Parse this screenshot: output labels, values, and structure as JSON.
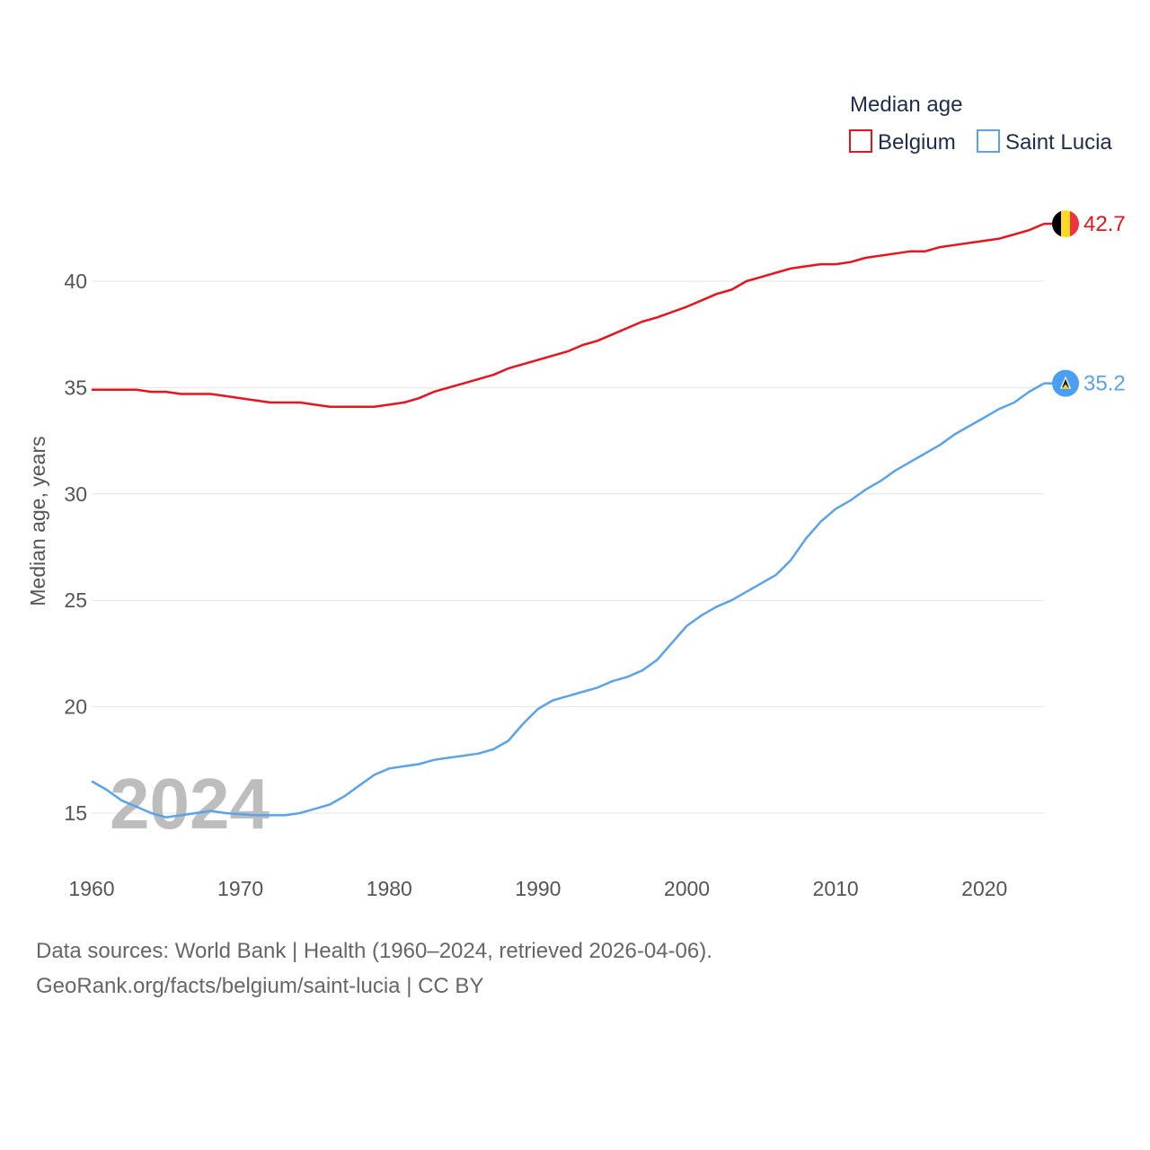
{
  "chart_data": {
    "type": "line",
    "legend_title": "Median age",
    "ylabel": "Median age, years",
    "xlabel": "",
    "xlim": [
      1960,
      2024
    ],
    "ylim": [
      12.5,
      44.5
    ],
    "x_ticks": [
      1960,
      1970,
      1980,
      1990,
      2000,
      2010,
      2020
    ],
    "y_ticks": [
      15,
      20,
      25,
      30,
      35,
      40
    ],
    "year_watermark": "2024",
    "grid": true,
    "legend_position": "top-right",
    "series": [
      {
        "name": "Belgium",
        "color": "#e8131c",
        "end_label": "42.7",
        "flag_icon": "belgium-flag-icon",
        "points": [
          [
            1960,
            34.9
          ],
          [
            1963,
            34.9
          ],
          [
            1964,
            34.8
          ],
          [
            1965,
            34.8
          ],
          [
            1966,
            34.7
          ],
          [
            1968,
            34.7
          ],
          [
            1970,
            34.5
          ],
          [
            1972,
            34.3
          ],
          [
            1974,
            34.3
          ],
          [
            1976,
            34.1
          ],
          [
            1979,
            34.1
          ],
          [
            1981,
            34.3
          ],
          [
            1982,
            34.5
          ],
          [
            1983,
            34.8
          ],
          [
            1985,
            35.2
          ],
          [
            1987,
            35.6
          ],
          [
            1988,
            35.9
          ],
          [
            1990,
            36.3
          ],
          [
            1992,
            36.7
          ],
          [
            1993,
            37.0
          ],
          [
            1994,
            37.2
          ],
          [
            1995,
            37.5
          ],
          [
            1997,
            38.1
          ],
          [
            1998,
            38.3
          ],
          [
            2000,
            38.8
          ],
          [
            2001,
            39.1
          ],
          [
            2002,
            39.4
          ],
          [
            2003,
            39.6
          ],
          [
            2004,
            40.0
          ],
          [
            2005,
            40.2
          ],
          [
            2006,
            40.4
          ],
          [
            2007,
            40.6
          ],
          [
            2008,
            40.7
          ],
          [
            2009,
            40.8
          ],
          [
            2010,
            40.8
          ],
          [
            2011,
            40.9
          ],
          [
            2012,
            41.1
          ],
          [
            2014,
            41.3
          ],
          [
            2015,
            41.4
          ],
          [
            2016,
            41.4
          ],
          [
            2017,
            41.6
          ],
          [
            2018,
            41.7
          ],
          [
            2020,
            41.9
          ],
          [
            2021,
            42.0
          ],
          [
            2022,
            42.2
          ],
          [
            2023,
            42.4
          ],
          [
            2024,
            42.7
          ]
        ]
      },
      {
        "name": "Saint Lucia",
        "color": "#5aa3e8",
        "end_label": "35.2",
        "flag_icon": "saint-lucia-flag-icon",
        "points": [
          [
            1960,
            16.5
          ],
          [
            1961,
            16.1
          ],
          [
            1962,
            15.6
          ],
          [
            1963,
            15.3
          ],
          [
            1964,
            15.0
          ],
          [
            1965,
            14.8
          ],
          [
            1966,
            14.9
          ],
          [
            1967,
            15.0
          ],
          [
            1968,
            15.1
          ],
          [
            1969,
            15.0
          ],
          [
            1970,
            14.95
          ],
          [
            1971,
            14.9
          ],
          [
            1972,
            14.9
          ],
          [
            1973,
            14.9
          ],
          [
            1974,
            15.0
          ],
          [
            1975,
            15.2
          ],
          [
            1976,
            15.4
          ],
          [
            1977,
            15.8
          ],
          [
            1978,
            16.3
          ],
          [
            1979,
            16.8
          ],
          [
            1980,
            17.1
          ],
          [
            1981,
            17.2
          ],
          [
            1982,
            17.3
          ],
          [
            1983,
            17.5
          ],
          [
            1984,
            17.6
          ],
          [
            1985,
            17.7
          ],
          [
            1986,
            17.8
          ],
          [
            1987,
            18.0
          ],
          [
            1988,
            18.4
          ],
          [
            1989,
            19.2
          ],
          [
            1990,
            19.9
          ],
          [
            1991,
            20.3
          ],
          [
            1992,
            20.5
          ],
          [
            1993,
            20.7
          ],
          [
            1994,
            20.9
          ],
          [
            1995,
            21.2
          ],
          [
            1996,
            21.4
          ],
          [
            1997,
            21.7
          ],
          [
            1998,
            22.2
          ],
          [
            1999,
            23.0
          ],
          [
            2000,
            23.8
          ],
          [
            2001,
            24.3
          ],
          [
            2002,
            24.7
          ],
          [
            2003,
            25.0
          ],
          [
            2004,
            25.4
          ],
          [
            2005,
            25.8
          ],
          [
            2006,
            26.2
          ],
          [
            2007,
            26.9
          ],
          [
            2008,
            27.9
          ],
          [
            2009,
            28.7
          ],
          [
            2010,
            29.3
          ],
          [
            2011,
            29.7
          ],
          [
            2012,
            30.2
          ],
          [
            2013,
            30.6
          ],
          [
            2014,
            31.1
          ],
          [
            2015,
            31.5
          ],
          [
            2016,
            31.9
          ],
          [
            2017,
            32.3
          ],
          [
            2018,
            32.8
          ],
          [
            2019,
            33.2
          ],
          [
            2020,
            33.6
          ],
          [
            2021,
            34.0
          ],
          [
            2022,
            34.3
          ],
          [
            2023,
            34.8
          ],
          [
            2024,
            35.2
          ]
        ]
      }
    ]
  },
  "footer": {
    "line1": "Data sources: World Bank | Health (1960–2024, retrieved 2026-04-06).",
    "line2": "GeoRank.org/facts/belgium/saint-lucia | CC BY"
  }
}
